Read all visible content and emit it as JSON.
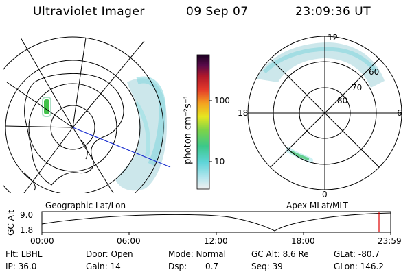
{
  "header": {
    "instrument": "Ultraviolet Imager",
    "date": "09 Sep 07",
    "time": "23:09:36 UT"
  },
  "colorbar": {
    "unit_label": "photon cm⁻²s⁻¹",
    "tick_labels": [
      "100",
      "10"
    ]
  },
  "left_panel": {
    "caption": "Geographic Lat/Lon"
  },
  "right_panel": {
    "caption": "Apex MLat/MLT",
    "mlt_labels": {
      "top": "12",
      "left": "18",
      "right": "6",
      "bottom": "0"
    },
    "lat_labels": [
      "60",
      "70",
      "80"
    ]
  },
  "altitude_plot": {
    "ylabel": "GC Alt",
    "y_ticks": [
      "9.0",
      "1.8"
    ],
    "x_ticks": [
      "00:00",
      "06:00",
      "12:00",
      "18:00",
      "23:59"
    ]
  },
  "info": {
    "filter": "Flt: LBHL",
    "door": "Door: Open",
    "mode": "Mode: Normal",
    "gc_alt": "GC Alt: 8.6 Re",
    "glat": "GLat: -80.7",
    "ip": "IP: 36.0",
    "gain": "Gain: 14",
    "dsp_label": "Dsp:",
    "dsp_value": "0.7",
    "seq": "Seq: 39",
    "glon": "GLon: 146.2"
  },
  "colors": {
    "cursor": "#dd0000",
    "terminator_line": "#1a2fcf",
    "aurora_faint": "#bfe3e8",
    "aurora_mid": "#5fd3d3",
    "aurora_green": "#3fbf3f"
  }
}
